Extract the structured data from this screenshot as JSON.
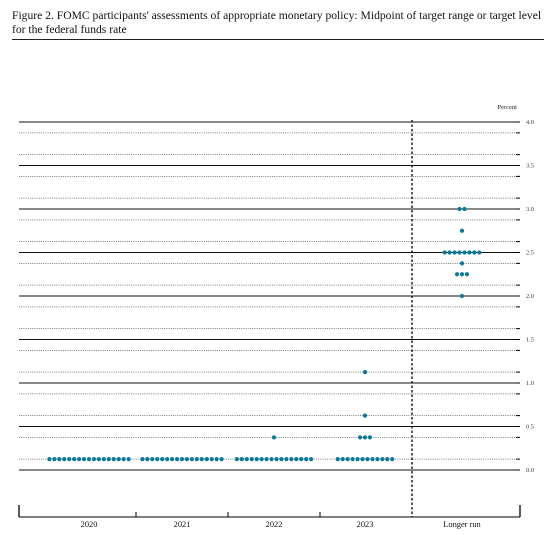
{
  "figure": {
    "title": "Figure 2.  FOMC participants' assessments of appropriate monetary policy: Midpoint of target range or target level for the federal funds rate"
  },
  "colors": {
    "dot": "#0b7a9a",
    "axis": "#000000",
    "grid": "#555555"
  },
  "chart_data": {
    "type": "scatter",
    "title": "",
    "xlabel": "",
    "ylabel": "Percent",
    "categories": [
      "2020",
      "2021",
      "2022",
      "2023",
      "Longer run"
    ],
    "ylim": [
      0,
      4
    ],
    "y_ticks": [
      0.0,
      0.5,
      1.0,
      1.5,
      2.0,
      2.5,
      3.0,
      3.5,
      4.0
    ],
    "y_tick_labels": [
      "0.0",
      "0.5",
      "1.0",
      "1.5",
      "2.0",
      "2.5",
      "3.0",
      "3.5",
      "4.0"
    ],
    "grid": true,
    "gridline_levels": [
      0.125,
      0.375,
      0.625,
      0.875,
      1.125,
      1.375,
      1.625,
      1.875,
      2.125,
      2.375,
      2.625,
      2.875,
      3.125,
      3.375,
      3.625,
      3.875
    ],
    "series": [
      {
        "values": [
          {
            "category": "2020",
            "y": 0.125,
            "count": 17
          },
          {
            "category": "2021",
            "y": 0.125,
            "count": 17
          },
          {
            "category": "2022",
            "y": 0.125,
            "count": 16
          },
          {
            "category": "2022",
            "y": 0.375,
            "count": 1
          },
          {
            "category": "2023",
            "y": 0.125,
            "count": 12
          },
          {
            "category": "2023",
            "y": 0.375,
            "count": 3
          },
          {
            "category": "2023",
            "y": 0.625,
            "count": 1
          },
          {
            "category": "2023",
            "y": 1.125,
            "count": 1
          },
          {
            "category": "Longer run",
            "y": 2.0,
            "count": 1
          },
          {
            "category": "Longer run",
            "y": 2.25,
            "count": 3
          },
          {
            "category": "Longer run",
            "y": 2.375,
            "count": 1
          },
          {
            "category": "Longer run",
            "y": 2.5,
            "count": 8
          },
          {
            "category": "Longer run",
            "y": 2.75,
            "count": 1
          },
          {
            "category": "Longer run",
            "y": 3.0,
            "count": 2
          }
        ]
      }
    ]
  }
}
